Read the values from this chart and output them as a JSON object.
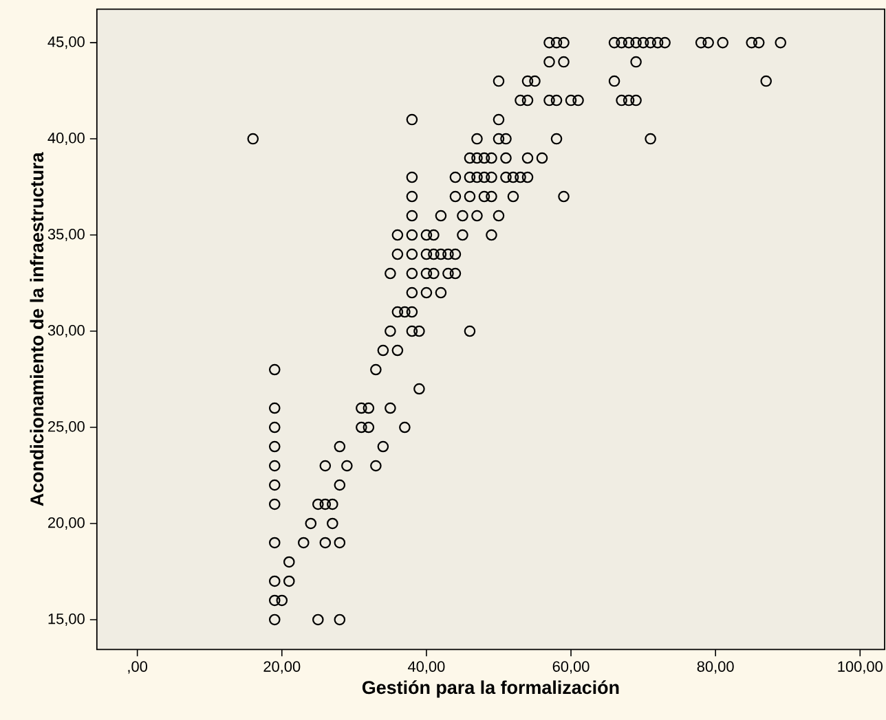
{
  "chart_data": {
    "type": "scatter",
    "xlabel": "Gestión para la formalización",
    "ylabel": "Acondicionamiento de la infraestructura",
    "x": [
      16,
      19,
      19,
      19,
      19,
      19,
      19,
      19,
      19,
      19,
      19,
      19,
      20,
      21,
      21,
      25,
      28,
      23,
      26,
      28,
      24,
      27,
      25,
      26,
      27,
      28,
      26,
      29,
      33,
      28,
      34,
      31,
      32,
      37,
      31,
      32,
      35,
      39,
      33,
      34,
      36,
      35,
      38,
      39,
      46,
      36,
      37,
      38,
      38,
      40,
      42,
      35,
      38,
      40,
      41,
      43,
      44,
      36,
      38,
      40,
      41,
      42,
      43,
      44,
      36,
      38,
      40,
      41,
      45,
      49,
      38,
      42,
      45,
      47,
      50,
      38,
      44,
      46,
      48,
      49,
      52,
      59,
      38,
      44,
      46,
      47,
      48,
      49,
      51,
      52,
      53,
      54,
      46,
      47,
      48,
      49,
      51,
      54,
      56,
      47,
      50,
      51,
      58,
      71,
      38,
      50,
      53,
      54,
      57,
      58,
      60,
      61,
      67,
      68,
      69,
      50,
      54,
      55,
      66,
      87,
      57,
      59,
      69,
      57,
      58,
      59,
      66,
      67,
      68,
      69,
      70,
      71,
      72,
      73,
      78,
      79,
      81,
      85,
      86,
      89
    ],
    "values": [
      40,
      28,
      26,
      25,
      24,
      23,
      22,
      21,
      19,
      17,
      16,
      15,
      16,
      17,
      18,
      15,
      15,
      19,
      19,
      19,
      20,
      20,
      21,
      21,
      21,
      22,
      23,
      23,
      23,
      24,
      24,
      25,
      25,
      25,
      26,
      26,
      26,
      27,
      28,
      29,
      29,
      30,
      30,
      30,
      30,
      31,
      31,
      31,
      32,
      32,
      32,
      33,
      33,
      33,
      33,
      33,
      33,
      34,
      34,
      34,
      34,
      34,
      34,
      34,
      35,
      35,
      35,
      35,
      35,
      35,
      36,
      36,
      36,
      36,
      36,
      37,
      37,
      37,
      37,
      37,
      37,
      37,
      38,
      38,
      38,
      38,
      38,
      38,
      38,
      38,
      38,
      38,
      39,
      39,
      39,
      39,
      39,
      39,
      39,
      40,
      40,
      40,
      40,
      40,
      41,
      41,
      42,
      42,
      42,
      42,
      42,
      42,
      42,
      42,
      42,
      43,
      43,
      43,
      43,
      43,
      44,
      44,
      44,
      45,
      45,
      45,
      45,
      45,
      45,
      45,
      45,
      45,
      45,
      45,
      45,
      45,
      45,
      45,
      45,
      45
    ],
    "color": "#000000",
    "marker": "circle",
    "grid": false,
    "xlim": [
      -5.6,
      103.4
    ],
    "ylim": [
      13.45,
      46.74
    ],
    "xticks": [
      {
        "value": 0,
        "label": ",00"
      },
      {
        "value": 20,
        "label": "20,00"
      },
      {
        "value": 40,
        "label": "40,00"
      },
      {
        "value": 60,
        "label": "60,00"
      },
      {
        "value": 80,
        "label": "80,00"
      },
      {
        "value": 100,
        "label": "100,00"
      }
    ],
    "yticks": [
      {
        "value": 15,
        "label": "15,00"
      },
      {
        "value": 20,
        "label": "20,00"
      },
      {
        "value": 25,
        "label": "25,00"
      },
      {
        "value": 30,
        "label": "30,00"
      },
      {
        "value": 35,
        "label": "35,00"
      },
      {
        "value": 40,
        "label": "40,00"
      },
      {
        "value": 45,
        "label": "45,00"
      }
    ]
  }
}
